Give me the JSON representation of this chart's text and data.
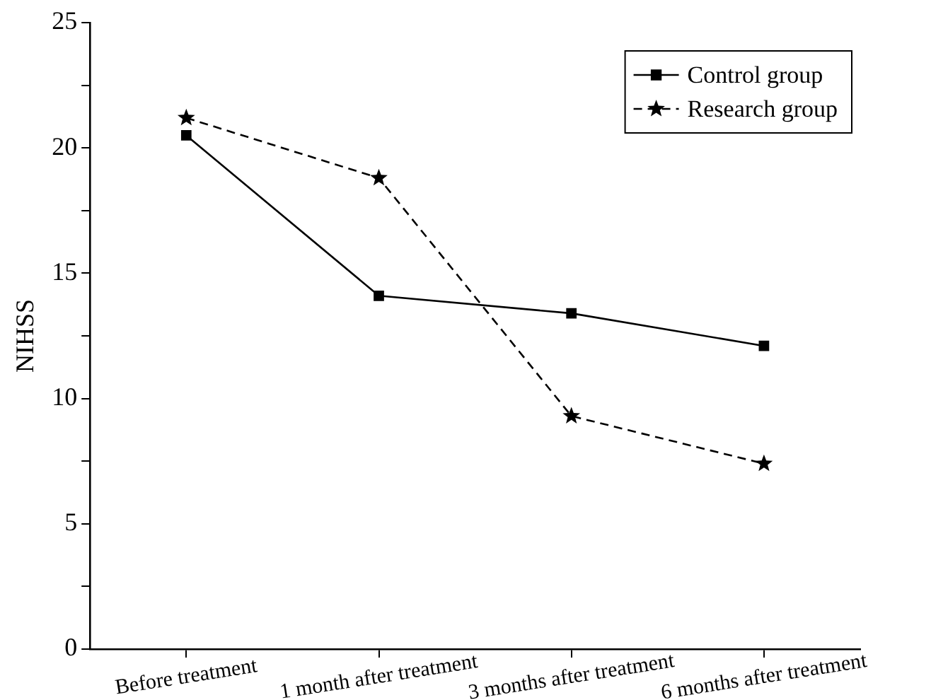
{
  "chart_data": {
    "type": "line",
    "ylabel": "NIHSS",
    "categories": [
      "Before treatment",
      "1 month after treatment",
      "3 months after treatment",
      "6 months after treatment"
    ],
    "series": [
      {
        "name": "Control group",
        "color": "#000000",
        "values": [
          20.5,
          14.1,
          13.4,
          12.1
        ],
        "marker": "square",
        "line_style": "solid"
      },
      {
        "name": "Research group",
        "color": "#000000",
        "values": [
          21.2,
          18.8,
          9.3,
          7.4
        ],
        "marker": "star",
        "line_style": "dashed"
      }
    ],
    "ylim": [
      0,
      25
    ],
    "yticks": [
      0,
      {
        "value": 2.5,
        "label": null
      },
      5,
      {
        "value": 7.5,
        "label": null
      },
      10,
      {
        "value": 12.5,
        "label": null
      },
      15,
      {
        "value": 17.5,
        "label": null
      },
      20,
      {
        "value": 22.5,
        "label": null
      },
      25
    ],
    "grid": false,
    "legend": "top right"
  }
}
